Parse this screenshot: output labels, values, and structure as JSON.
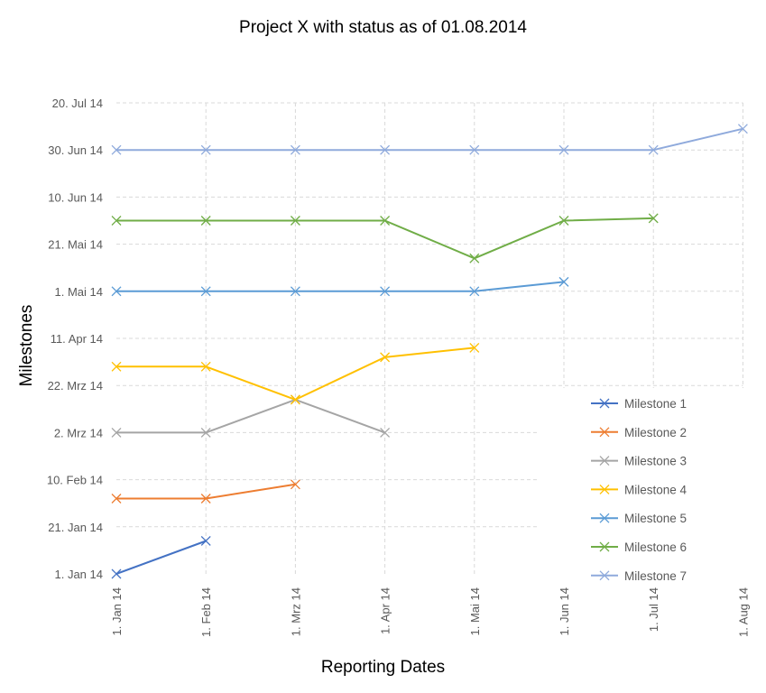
{
  "chart_data": {
    "type": "line",
    "title": "Project X with status as of 01.08.2014",
    "xlabel": "Reporting Dates",
    "ylabel": "Milestones",
    "x": [
      "2014-01-01",
      "2014-02-01",
      "2014-03-01",
      "2014-04-01",
      "2014-05-01",
      "2014-06-01",
      "2014-07-01",
      "2014-08-01"
    ],
    "x_tick_labels": [
      "1. Jan 14",
      "1. Feb 14",
      "1. Mrz 14",
      "1. Apr 14",
      "1. Mai 14",
      "1. Jun 14",
      "1. Jul 14",
      "1. Aug 14"
    ],
    "y_ticks": [
      "2014-01-01",
      "2014-01-21",
      "2014-02-10",
      "2014-03-02",
      "2014-03-22",
      "2014-04-11",
      "2014-05-01",
      "2014-05-21",
      "2014-06-10",
      "2014-06-30",
      "2014-07-20"
    ],
    "y_tick_labels": [
      "1. Jan 14",
      "21. Jan 14",
      "10. Feb 14",
      "2. Mrz 14",
      "22. Mrz 14",
      "11. Apr 14",
      "1. Mai 14",
      "21. Mai 14",
      "10. Jun 14",
      "30. Jun 14",
      "20. Jul 14"
    ],
    "ylim": [
      "2014-01-01",
      "2014-07-20"
    ],
    "grid": true,
    "legend_position": "bottom-right",
    "series": [
      {
        "name": "Milestone 1",
        "color": "#4472C4",
        "values": [
          "2014-01-01",
          "2014-01-15",
          null,
          null,
          null,
          null,
          null,
          null
        ]
      },
      {
        "name": "Milestone 2",
        "color": "#ED7D31",
        "values": [
          "2014-02-02",
          "2014-02-02",
          "2014-02-08",
          null,
          null,
          null,
          null,
          null
        ]
      },
      {
        "name": "Milestone 3",
        "color": "#A5A5A5",
        "values": [
          "2014-03-02",
          "2014-03-02",
          "2014-03-16",
          "2014-03-02",
          null,
          null,
          null,
          null
        ]
      },
      {
        "name": "Milestone 4",
        "color": "#FFC000",
        "values": [
          "2014-03-30",
          "2014-03-30",
          "2014-03-16",
          "2014-04-03",
          "2014-04-07",
          null,
          null,
          null
        ]
      },
      {
        "name": "Milestone 5",
        "color": "#5B9BD5",
        "values": [
          "2014-05-01",
          "2014-05-01",
          "2014-05-01",
          "2014-05-01",
          "2014-05-01",
          "2014-05-05",
          null,
          null
        ]
      },
      {
        "name": "Milestone 6",
        "color": "#70AD47",
        "values": [
          "2014-05-31",
          "2014-05-31",
          "2014-05-31",
          "2014-05-31",
          "2014-05-15",
          "2014-05-31",
          "2014-06-01",
          null
        ]
      },
      {
        "name": "Milestone 7",
        "color": "#8FAADC",
        "values": [
          "2014-06-30",
          "2014-06-30",
          "2014-06-30",
          "2014-06-30",
          "2014-06-30",
          "2014-06-30",
          "2014-06-30",
          "2014-07-09"
        ]
      }
    ]
  }
}
